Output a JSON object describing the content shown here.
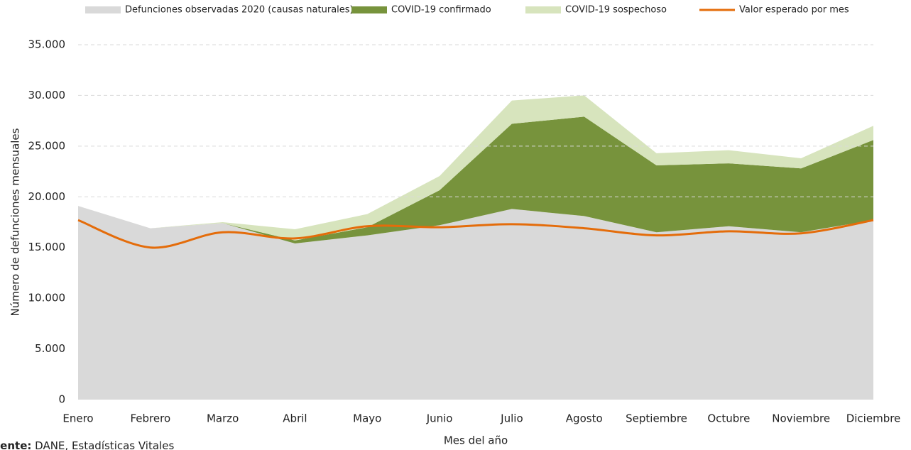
{
  "chart_data": {
    "type": "stacked-area-line",
    "y_label": "Número de defunciones mensuales",
    "x_label": "Mes del año",
    "source_label": "Fuente:",
    "source_text": "DANE, Estadísticas Vitales",
    "categories": [
      "Enero",
      "Febrero",
      "Marzo",
      "Abril",
      "Mayo",
      "Junio",
      "Julio",
      "Agosto",
      "Septiembre",
      "Octubre",
      "Noviembre",
      "Diciembre"
    ],
    "series": [
      {
        "name": "Defunciones observadas 2020 (causas naturales)",
        "kind": "area",
        "color": "#d9d9d9",
        "values": [
          19100,
          16900,
          17400,
          15400,
          16200,
          17200,
          18800,
          18100,
          16500,
          17100,
          16500,
          17700
        ]
      },
      {
        "name": "COVID-19 confirmado",
        "kind": "area",
        "color": "#77933c",
        "values": [
          0,
          0,
          0,
          300,
          800,
          3450,
          8400,
          9800,
          6600,
          6200,
          6300,
          7900
        ]
      },
      {
        "name": "COVID-19 sospechoso",
        "kind": "area",
        "color": "#d7e4bd",
        "values": [
          0,
          0,
          100,
          1100,
          1300,
          1400,
          2300,
          2100,
          1200,
          1300,
          1000,
          1400
        ]
      },
      {
        "name": "Valor esperado por mes",
        "kind": "line",
        "color": "#e46c0a",
        "values": [
          17700,
          15000,
          16500,
          15900,
          17100,
          17000,
          17300,
          16900,
          16200,
          16600,
          16400,
          17700
        ]
      }
    ],
    "ylim": [
      0,
      35000
    ],
    "yticks": [
      0,
      {
        "value": 5000,
        "label": "5.000"
      },
      {
        "value": 10000,
        "label": "10.000"
      },
      {
        "value": 15000,
        "label": "15.000"
      },
      {
        "value": 20000,
        "label": "20.000"
      },
      {
        "value": 25000,
        "label": "25.000"
      },
      {
        "value": 30000,
        "label": "30.000"
      },
      {
        "value": 35000,
        "label": "35.000"
      }
    ],
    "grid": true,
    "legend": "top"
  }
}
